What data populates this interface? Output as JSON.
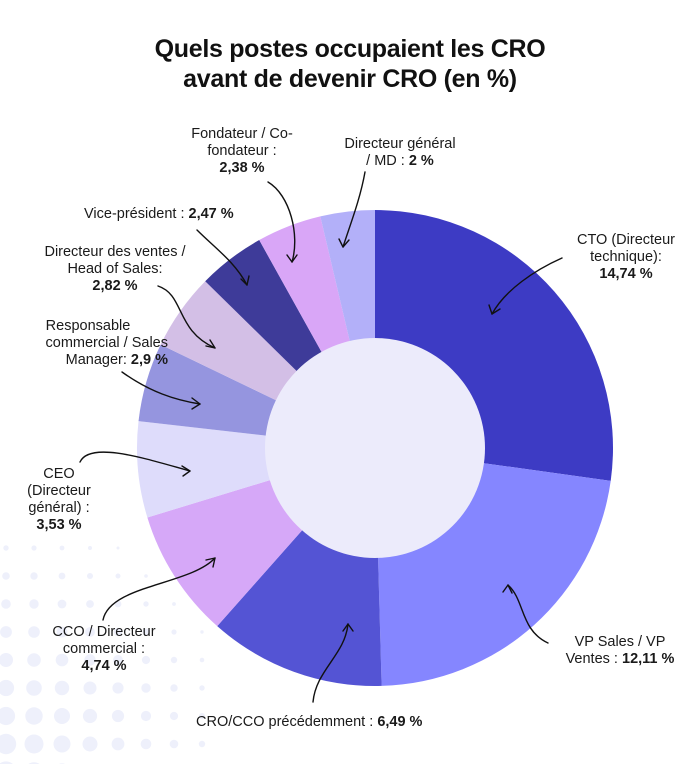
{
  "title": {
    "line1": "Quels postes occupaient les CRO",
    "line2": "avant de devenir CRO (en %)"
  },
  "chart_data": {
    "type": "pie",
    "title": "Quels postes occupaient les CRO avant de devenir CRO (en %)",
    "donut": true,
    "slices": [
      {
        "label": "CTO (Directeur technique)",
        "value": 14.74,
        "value_text": "14,74 %",
        "color": "#3d3bc4"
      },
      {
        "label": "VP Sales / VP Ventes",
        "value": 12.11,
        "value_text": "12,11 %",
        "color": "#8586ff"
      },
      {
        "label": "CRO/CCO précédemment",
        "value": 6.49,
        "value_text": "6,49 %",
        "color": "#5454d4"
      },
      {
        "label": "CCO / Directeur commercial",
        "value": 4.74,
        "value_text": "4,74 %",
        "color": "#d6a8f8"
      },
      {
        "label": "CEO (Directeur général)",
        "value": 3.53,
        "value_text": "3,53 %",
        "color": "#dedcfb"
      },
      {
        "label": "Responsable commercial / Sales Manager",
        "value": 2.9,
        "value_text": "2,9 %",
        "color": "#9595df"
      },
      {
        "label": "Directeur des ventes / Head of Sales",
        "value": 2.82,
        "value_text": "2,82 %",
        "color": "#d3bfe6"
      },
      {
        "label": "Vice-président",
        "value": 2.47,
        "value_text": "2,47 %",
        "color": "#3e3b99"
      },
      {
        "label": "Fondateur / Co-fondateur",
        "value": 2.38,
        "value_text": "2,38 %",
        "color": "#d9a6f7"
      },
      {
        "label": "Directeur général / MD",
        "value": 2.0,
        "value_text": "2 %",
        "color": "#b3b0f9"
      }
    ],
    "center_color": "#ecebfb"
  },
  "labels": {
    "cto": {
      "l1": "CTO (Directeur",
      "l2": "technique):",
      "v": "14,74 %"
    },
    "vp_sales": {
      "l1": "VP Sales / VP",
      "l2": "Ventes :",
      "v": "12,11 %"
    },
    "cro_cco": {
      "l1": "CRO/CCO précédemment :",
      "v": "6,49 %"
    },
    "cco": {
      "l1": "CCO / Directeur",
      "l2": "commercial :",
      "v": "4,74 %"
    },
    "ceo": {
      "l1": "CEO",
      "l2": "(Directeur",
      "l3": "général) :",
      "v": "3,53 %"
    },
    "responsable": {
      "l1": "Responsable",
      "l2": "commercial / Sales",
      "l3": "Manager:",
      "v": "2,9 %"
    },
    "dir_ventes": {
      "l1": "Directeur des ventes /",
      "l2": "Head of  Sales:",
      "v": "2,82 %"
    },
    "vice_pres": {
      "l1": "Vice-président :",
      "v": "2,47 %"
    },
    "fondateur": {
      "l1": "Fondateur / Co-",
      "l2": "fondateur :",
      "v": "2,38 %"
    },
    "dir_general": {
      "l1": "Directeur général",
      "l2": "/ MD :",
      "v": "2 %"
    }
  }
}
